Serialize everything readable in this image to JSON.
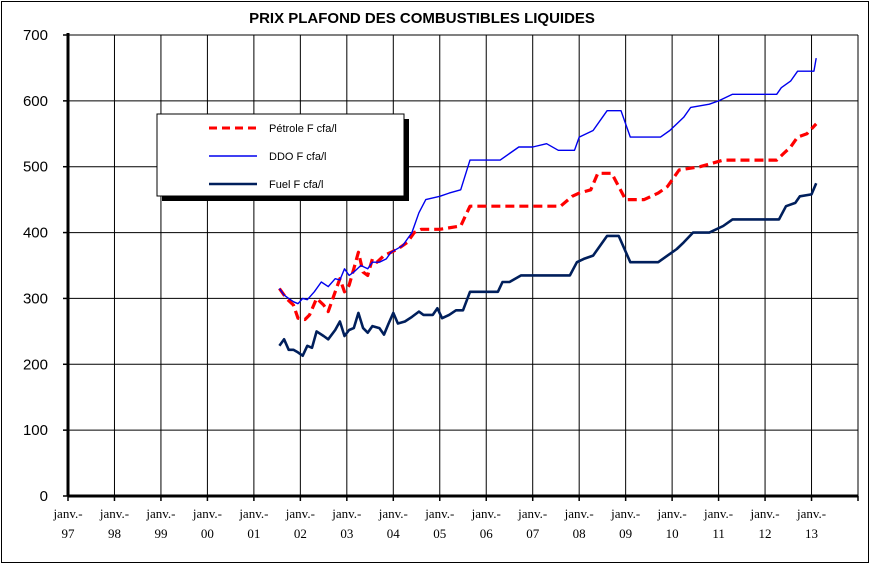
{
  "chart_data": {
    "type": "line",
    "title": "PRIX PLAFOND DES COMBUSTIBLES LIQUIDES",
    "xlabel": "",
    "ylabel": "",
    "ylim": [
      0,
      700
    ],
    "yticks": [
      0,
      100,
      200,
      300,
      400,
      500,
      600,
      700
    ],
    "xlim": [
      1997.0,
      2014.0
    ],
    "xticks": [
      {
        "x": 1997,
        "label": "janv.-\n97"
      },
      {
        "x": 1998,
        "label": "janv.-\n98"
      },
      {
        "x": 1999,
        "label": "janv.-\n99"
      },
      {
        "x": 2000,
        "label": "janv.-\n00"
      },
      {
        "x": 2001,
        "label": "janv.-\n01"
      },
      {
        "x": 2002,
        "label": "janv.-\n02"
      },
      {
        "x": 2003,
        "label": "janv.-\n03"
      },
      {
        "x": 2004,
        "label": "janv.-\n04"
      },
      {
        "x": 2005,
        "label": "janv.-\n05"
      },
      {
        "x": 2006,
        "label": "janv.-\n06"
      },
      {
        "x": 2007,
        "label": "janv.-\n07"
      },
      {
        "x": 2008,
        "label": "janv.-\n08"
      },
      {
        "x": 2009,
        "label": "janv.-\n09"
      },
      {
        "x": 2010,
        "label": "janv.-\n10"
      },
      {
        "x": 2011,
        "label": "janv.-\n11"
      },
      {
        "x": 2012,
        "label": "janv.-\n12"
      },
      {
        "x": 2013,
        "label": "janv.-\n13"
      }
    ],
    "grid": true,
    "legend_position": "top-left",
    "series": [
      {
        "name": "Pétrole F cfa/l",
        "color": "#ff0000",
        "style": "dashed",
        "points": [
          [
            2001.55,
            315
          ],
          [
            2001.7,
            300
          ],
          [
            2001.85,
            290
          ],
          [
            2001.95,
            270
          ],
          [
            2002.1,
            268
          ],
          [
            2002.2,
            275
          ],
          [
            2002.35,
            300
          ],
          [
            2002.5,
            290
          ],
          [
            2002.6,
            280
          ],
          [
            2002.75,
            310
          ],
          [
            2002.85,
            330
          ],
          [
            2002.95,
            310
          ],
          [
            2003.05,
            320
          ],
          [
            2003.15,
            345
          ],
          [
            2003.25,
            370
          ],
          [
            2003.35,
            340
          ],
          [
            2003.45,
            335
          ],
          [
            2003.55,
            360
          ],
          [
            2003.65,
            355
          ],
          [
            2003.8,
            365
          ],
          [
            2003.95,
            370
          ],
          [
            2004.1,
            375
          ],
          [
            2004.3,
            385
          ],
          [
            2004.45,
            400
          ],
          [
            2004.6,
            405
          ],
          [
            2005.0,
            405
          ],
          [
            2005.45,
            410
          ],
          [
            2005.65,
            440
          ],
          [
            2006.0,
            440
          ],
          [
            2007.6,
            440
          ],
          [
            2007.85,
            455
          ],
          [
            2008.0,
            460
          ],
          [
            2008.25,
            465
          ],
          [
            2008.4,
            490
          ],
          [
            2008.7,
            490
          ],
          [
            2008.85,
            470
          ],
          [
            2009.0,
            450
          ],
          [
            2009.4,
            450
          ],
          [
            2009.7,
            460
          ],
          [
            2009.9,
            470
          ],
          [
            2010.15,
            495
          ],
          [
            2010.6,
            500
          ],
          [
            2010.85,
            505
          ],
          [
            2011.1,
            510
          ],
          [
            2011.7,
            510
          ],
          [
            2012.25,
            510
          ],
          [
            2012.4,
            520
          ],
          [
            2012.55,
            530
          ],
          [
            2012.7,
            545
          ],
          [
            2012.9,
            550
          ],
          [
            2013.1,
            565
          ]
        ]
      },
      {
        "name": "DDO F cfa/l",
        "color": "#0000ee",
        "style": "solid",
        "points": [
          [
            2001.55,
            315
          ],
          [
            2001.65,
            305
          ],
          [
            2001.75,
            300
          ],
          [
            2001.85,
            295
          ],
          [
            2001.95,
            292
          ],
          [
            2002.05,
            300
          ],
          [
            2002.15,
            298
          ],
          [
            2002.3,
            310
          ],
          [
            2002.45,
            325
          ],
          [
            2002.6,
            318
          ],
          [
            2002.75,
            330
          ],
          [
            2002.85,
            328
          ],
          [
            2002.95,
            345
          ],
          [
            2003.05,
            335
          ],
          [
            2003.15,
            340
          ],
          [
            2003.3,
            350
          ],
          [
            2003.45,
            345
          ],
          [
            2003.55,
            355
          ],
          [
            2003.7,
            355
          ],
          [
            2003.85,
            360
          ],
          [
            2003.95,
            370
          ],
          [
            2004.2,
            380
          ],
          [
            2004.4,
            400
          ],
          [
            2004.55,
            430
          ],
          [
            2004.7,
            450
          ],
          [
            2005.0,
            455
          ],
          [
            2005.2,
            460
          ],
          [
            2005.45,
            465
          ],
          [
            2005.65,
            510
          ],
          [
            2006.3,
            510
          ],
          [
            2006.5,
            520
          ],
          [
            2006.7,
            530
          ],
          [
            2007.0,
            530
          ],
          [
            2007.3,
            535
          ],
          [
            2007.55,
            525
          ],
          [
            2007.9,
            525
          ],
          [
            2008.0,
            545
          ],
          [
            2008.3,
            555
          ],
          [
            2008.6,
            585
          ],
          [
            2008.9,
            585
          ],
          [
            2009.1,
            545
          ],
          [
            2009.75,
            545
          ],
          [
            2009.95,
            555
          ],
          [
            2010.25,
            575
          ],
          [
            2010.4,
            590
          ],
          [
            2010.8,
            595
          ],
          [
            2011.0,
            600
          ],
          [
            2011.3,
            610
          ],
          [
            2011.7,
            610
          ],
          [
            2012.25,
            610
          ],
          [
            2012.35,
            620
          ],
          [
            2012.55,
            630
          ],
          [
            2012.7,
            645
          ],
          [
            2013.05,
            645
          ],
          [
            2013.1,
            665
          ]
        ]
      },
      {
        "name": "Fuel F cfa/l",
        "color": "#001f5c",
        "style": "solid",
        "points": [
          [
            2001.55,
            228
          ],
          [
            2001.65,
            238
          ],
          [
            2001.75,
            222
          ],
          [
            2001.85,
            222
          ],
          [
            2001.95,
            218
          ],
          [
            2002.05,
            213
          ],
          [
            2002.15,
            228
          ],
          [
            2002.25,
            225
          ],
          [
            2002.35,
            250
          ],
          [
            2002.5,
            243
          ],
          [
            2002.6,
            238
          ],
          [
            2002.75,
            252
          ],
          [
            2002.85,
            265
          ],
          [
            2002.95,
            243
          ],
          [
            2003.05,
            252
          ],
          [
            2003.15,
            255
          ],
          [
            2003.25,
            278
          ],
          [
            2003.35,
            255
          ],
          [
            2003.45,
            248
          ],
          [
            2003.55,
            258
          ],
          [
            2003.7,
            255
          ],
          [
            2003.8,
            245
          ],
          [
            2003.9,
            262
          ],
          [
            2004.0,
            278
          ],
          [
            2004.1,
            262
          ],
          [
            2004.25,
            265
          ],
          [
            2004.4,
            272
          ],
          [
            2004.55,
            280
          ],
          [
            2004.65,
            275
          ],
          [
            2004.85,
            275
          ],
          [
            2004.95,
            285
          ],
          [
            2005.05,
            270
          ],
          [
            2005.2,
            275
          ],
          [
            2005.35,
            282
          ],
          [
            2005.5,
            282
          ],
          [
            2005.65,
            310
          ],
          [
            2006.25,
            310
          ],
          [
            2006.35,
            325
          ],
          [
            2006.5,
            325
          ],
          [
            2006.75,
            335
          ],
          [
            2007.55,
            335
          ],
          [
            2007.8,
            335
          ],
          [
            2007.95,
            355
          ],
          [
            2008.1,
            360
          ],
          [
            2008.3,
            365
          ],
          [
            2008.6,
            395
          ],
          [
            2008.85,
            395
          ],
          [
            2009.1,
            355
          ],
          [
            2009.7,
            355
          ],
          [
            2009.9,
            365
          ],
          [
            2010.1,
            375
          ],
          [
            2010.25,
            385
          ],
          [
            2010.45,
            400
          ],
          [
            2010.8,
            400
          ],
          [
            2011.1,
            410
          ],
          [
            2011.3,
            420
          ],
          [
            2011.6,
            420
          ],
          [
            2012.3,
            420
          ],
          [
            2012.45,
            440
          ],
          [
            2012.65,
            445
          ],
          [
            2012.75,
            455
          ],
          [
            2013.0,
            458
          ],
          [
            2013.1,
            475
          ]
        ]
      }
    ]
  }
}
